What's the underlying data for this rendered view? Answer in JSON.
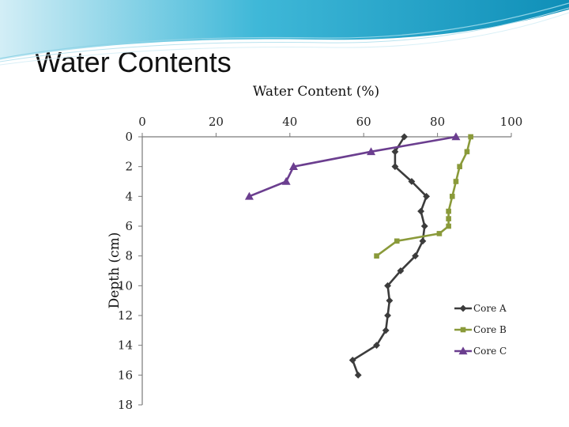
{
  "slide": {
    "title": "Water Contents"
  },
  "chart_data": {
    "type": "line",
    "title": "Water Content (%)",
    "xlabel": "Water Content (%)",
    "ylabel": "Depth (cm)",
    "xlim": [
      0,
      100
    ],
    "ylim": [
      0,
      18
    ],
    "y_inverted": true,
    "x_axis_position": "top",
    "x_ticks": [
      "0",
      "20",
      "40",
      "60",
      "80",
      "100"
    ],
    "y_ticks": [
      "0",
      "2",
      "4",
      "6",
      "8",
      "10",
      "12",
      "14",
      "16",
      "18"
    ],
    "legend_position": "right",
    "series": [
      {
        "name": "Core A",
        "color": "#3c3c3c",
        "marker": "diamond",
        "x": [
          71,
          68.5,
          68.5,
          73,
          77,
          75.5,
          76.5,
          76,
          74,
          70,
          66.5,
          67,
          66.5,
          66,
          63.5,
          57,
          58.5
        ],
        "y": [
          0,
          1,
          2,
          3,
          4,
          5,
          6,
          7,
          8,
          9,
          10,
          11,
          12,
          13,
          14,
          15,
          16
        ]
      },
      {
        "name": "Core B",
        "color": "#8a9a3a",
        "marker": "square",
        "x": [
          89,
          88,
          86,
          85,
          84,
          83,
          83,
          83,
          80.5,
          69,
          63.5
        ],
        "y": [
          0,
          1,
          2,
          3,
          4,
          5,
          5.5,
          6,
          6.5,
          7,
          8
        ]
      },
      {
        "name": "Core C",
        "color": "#6b3e8f",
        "marker": "triangle",
        "x": [
          85,
          62,
          41,
          39,
          29
        ],
        "y": [
          0,
          1,
          2,
          3,
          4
        ]
      }
    ]
  }
}
